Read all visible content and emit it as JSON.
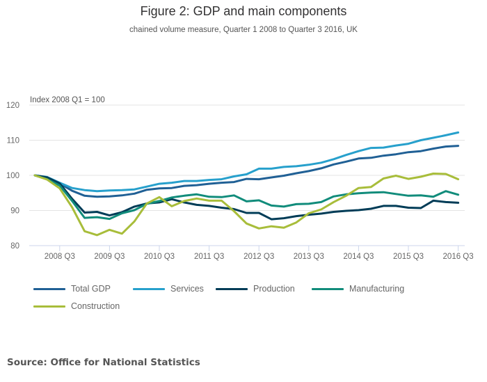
{
  "chart_data": {
    "type": "line",
    "title": "Figure 2: GDP and main components",
    "subtitle": "chained volume measure, Quarter 1 2008 to Quarter 3 2016, UK",
    "ylabel": "Index 2008 Q1 = 100",
    "xlabel": "",
    "ylim": [
      80,
      120
    ],
    "yticks": [
      80,
      90,
      100,
      110,
      120
    ],
    "grid": true,
    "legend_position": "bottom",
    "x": [
      "2008 Q1",
      "2008 Q2",
      "2008 Q3",
      "2008 Q4",
      "2009 Q1",
      "2009 Q2",
      "2009 Q3",
      "2009 Q4",
      "2010 Q1",
      "2010 Q2",
      "2010 Q3",
      "2010 Q4",
      "2011 Q1",
      "2011 Q2",
      "2011 Q3",
      "2011 Q4",
      "2012 Q1",
      "2012 Q2",
      "2012 Q3",
      "2012 Q4",
      "2013 Q1",
      "2013 Q2",
      "2013 Q3",
      "2013 Q4",
      "2014 Q1",
      "2014 Q2",
      "2014 Q3",
      "2014 Q4",
      "2015 Q1",
      "2015 Q2",
      "2015 Q3",
      "2015 Q4",
      "2016 Q1",
      "2016 Q2",
      "2016 Q3"
    ],
    "xtick_labels": [
      "2008 Q3",
      "2009 Q3",
      "2010 Q3",
      "2011 Q3",
      "2012 Q3",
      "2013 Q3",
      "2014 Q3",
      "2015 Q3",
      "2016 Q3"
    ],
    "series": [
      {
        "name": "Total GDP",
        "color": "#206095",
        "values": [
          100.0,
          99.3,
          97.7,
          95.6,
          94.2,
          93.9,
          94.0,
          94.3,
          94.8,
          95.9,
          96.3,
          96.4,
          97.0,
          97.2,
          97.6,
          97.9,
          98.1,
          99.0,
          98.9,
          99.4,
          99.9,
          100.6,
          101.2,
          102.0,
          103.1,
          103.9,
          104.8,
          105.0,
          105.6,
          106.0,
          106.6,
          106.9,
          107.6,
          108.2,
          108.4
        ]
      },
      {
        "name": "Services",
        "color": "#27a0cc",
        "values": [
          100.0,
          99.5,
          97.9,
          96.4,
          95.8,
          95.5,
          95.7,
          95.8,
          96.0,
          96.8,
          97.6,
          97.9,
          98.4,
          98.4,
          98.7,
          98.9,
          99.7,
          100.3,
          101.9,
          101.9,
          102.4,
          102.6,
          103.0,
          103.6,
          104.6,
          105.8,
          106.9,
          107.8,
          107.9,
          108.5,
          109.0,
          110.0,
          110.7,
          111.4,
          112.2
        ]
      },
      {
        "name": "Production",
        "color": "#003c57",
        "values": [
          100.0,
          99.4,
          97.7,
          93.3,
          89.4,
          89.6,
          88.6,
          89.5,
          91.1,
          92.0,
          92.3,
          93.2,
          92.3,
          91.6,
          91.3,
          90.8,
          90.4,
          89.3,
          89.3,
          87.5,
          87.8,
          88.4,
          88.8,
          89.1,
          89.6,
          89.9,
          90.1,
          90.5,
          91.3,
          91.3,
          90.8,
          90.7,
          92.8,
          92.4,
          92.2
        ]
      },
      {
        "name": "Manufacturing",
        "color": "#118c7b",
        "values": [
          100.0,
          98.9,
          97.1,
          92.7,
          87.9,
          88.1,
          87.6,
          89.2,
          90.1,
          91.9,
          92.7,
          93.7,
          94.2,
          94.6,
          93.9,
          93.8,
          94.3,
          92.6,
          92.9,
          91.4,
          91.1,
          91.8,
          91.9,
          92.4,
          94.0,
          94.6,
          94.9,
          95.1,
          95.2,
          94.7,
          94.2,
          94.3,
          93.9,
          95.5,
          94.5
        ]
      },
      {
        "name": "Construction",
        "color": "#a8bd3a",
        "values": [
          100.0,
          98.8,
          96.3,
          90.9,
          84.1,
          83.0,
          84.5,
          83.4,
          86.9,
          92.0,
          93.8,
          91.2,
          92.7,
          93.4,
          92.8,
          92.8,
          89.8,
          86.3,
          84.9,
          85.5,
          85.1,
          86.6,
          89.2,
          90.3,
          92.4,
          94.2,
          96.4,
          96.7,
          99.1,
          99.9,
          99.0,
          99.6,
          100.5,
          100.4,
          98.9
        ]
      }
    ]
  },
  "source": "Source: Office for National Statistics"
}
